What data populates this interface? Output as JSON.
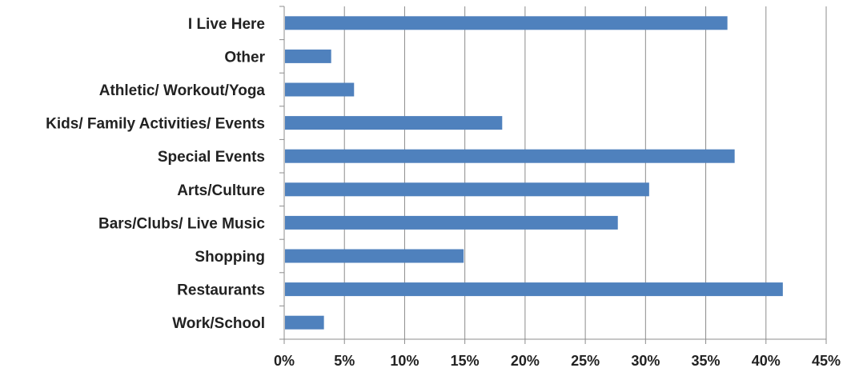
{
  "chart_data": {
    "type": "bar",
    "orientation": "horizontal",
    "categories": [
      "I Live Here",
      "Other",
      "Athletic/ Workout/Yoga",
      "Kids/ Family Activities/ Events",
      "Special Events",
      "Arts/Culture",
      "Bars/Clubs/ Live Music",
      "Shopping",
      "Restaurants",
      "Work/School"
    ],
    "values": [
      36.8,
      3.9,
      5.8,
      18.1,
      37.4,
      30.3,
      27.7,
      14.9,
      41.4,
      3.3
    ],
    "xlim": [
      0,
      45
    ],
    "xticks": [
      0,
      5,
      10,
      15,
      20,
      25,
      30,
      35,
      40,
      45
    ],
    "tick_labels": [
      "0%",
      "5%",
      "10%",
      "15%",
      "20%",
      "25%",
      "30%",
      "35%",
      "40%",
      "45%"
    ],
    "grid": "vertical",
    "legend": "none",
    "colors": {
      "bar": "#4f81bd",
      "grid": "#8c8c8c",
      "axis": "#8c8c8c",
      "text": "#222222"
    }
  }
}
